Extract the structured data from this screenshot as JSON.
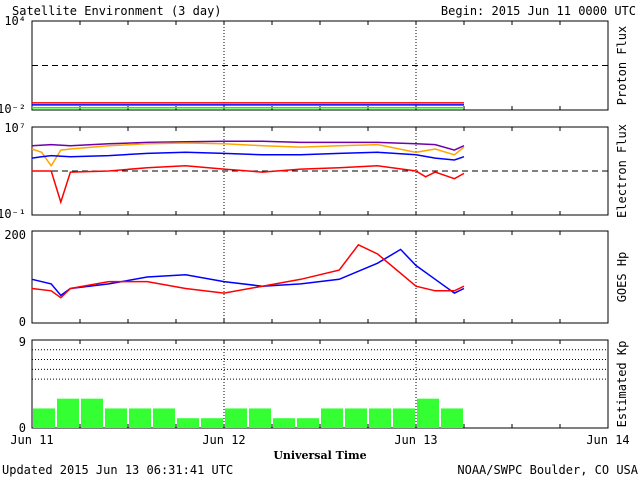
{
  "header": {
    "title": "Satellite Environment (3 day)",
    "begin": "Begin:  2015 Jun 11 0000 UTC"
  },
  "footer": {
    "updated": "Updated 2015 Jun 13 06:31:41 UTC",
    "credit": "NOAA/SWPC Boulder, CO USA"
  },
  "x_axis": {
    "title": "Universal Time",
    "ticks": [
      "Jun 11",
      "Jun 12",
      "Jun 13",
      "Jun 14"
    ]
  },
  "colors": {
    "red": "#ff0000",
    "blue": "#0000ff",
    "green": "#00ff00",
    "purple": "#7000a8",
    "orange": "#ffa500",
    "bar": "#33ff33"
  },
  "chart_data": [
    {
      "type": "line",
      "ylabel": "Proton Flux",
      "yscale": "log",
      "ytick_labels": [
        "10⁴",
        "10⁻²"
      ],
      "ylim": [
        0.01,
        10000
      ],
      "threshold": 10,
      "x_unit": "days since Jun 11 0000 UTC",
      "series": [
        {
          "color": "red",
          "x": [
            0,
            0.5,
            1.0,
            1.5,
            2.0,
            2.25
          ],
          "y": [
            0.03,
            0.03,
            0.03,
            0.03,
            0.03,
            0.03
          ]
        },
        {
          "color": "blue",
          "x": [
            0,
            0.5,
            1.0,
            1.5,
            2.0,
            2.25
          ],
          "y": [
            0.022,
            0.022,
            0.022,
            0.022,
            0.022,
            0.022
          ]
        },
        {
          "color": "green",
          "x": [
            0,
            0.5,
            1.0,
            1.5,
            2.0,
            2.25
          ],
          "y": [
            0.014,
            0.014,
            0.014,
            0.014,
            0.014,
            0.014
          ]
        }
      ]
    },
    {
      "type": "line",
      "ylabel": "Electron Flux",
      "yscale": "log",
      "ytick_labels": [
        "10⁷",
        "10⁻¹"
      ],
      "ylim": [
        0.1,
        10000000
      ],
      "threshold": 1000,
      "series": [
        {
          "color": "purple",
          "x": [
            0,
            0.1,
            0.2,
            0.4,
            0.6,
            0.8,
            1.0,
            1.2,
            1.4,
            1.6,
            1.8,
            2.0,
            2.1,
            2.2,
            2.25
          ],
          "y": [
            200000,
            250000,
            200000,
            300000,
            400000,
            450000,
            500000,
            500000,
            400000,
            400000,
            400000,
            300000,
            250000,
            80000,
            200000
          ]
        },
        {
          "color": "orange",
          "x": [
            0,
            0.05,
            0.1,
            0.15,
            0.2,
            0.4,
            0.6,
            0.8,
            1.0,
            1.2,
            1.4,
            1.6,
            1.8,
            2.0,
            2.1,
            2.2,
            2.25
          ],
          "y": [
            100000,
            50000,
            3000,
            80000,
            100000,
            200000,
            300000,
            350000,
            300000,
            200000,
            150000,
            200000,
            250000,
            50000,
            100000,
            30000,
            150000
          ]
        },
        {
          "color": "blue",
          "x": [
            0,
            0.05,
            0.1,
            0.2,
            0.4,
            0.6,
            0.8,
            1.0,
            1.2,
            1.4,
            1.6,
            1.8,
            2.0,
            2.1,
            2.2,
            2.25
          ],
          "y": [
            15000,
            20000,
            25000,
            20000,
            25000,
            40000,
            50000,
            40000,
            30000,
            30000,
            40000,
            50000,
            30000,
            15000,
            10000,
            20000
          ]
        },
        {
          "color": "red",
          "x": [
            0,
            0.1,
            0.15,
            0.2,
            0.4,
            0.6,
            0.8,
            1.0,
            1.2,
            1.4,
            1.6,
            1.8,
            2.0,
            2.05,
            2.1,
            2.2,
            2.25
          ],
          "y": [
            1000,
            1000,
            1.5,
            800,
            1000,
            2000,
            3000,
            1500,
            800,
            1500,
            2000,
            3000,
            1000,
            300,
            800,
            200,
            600
          ]
        }
      ]
    },
    {
      "type": "line",
      "ylabel": "GOES Hp",
      "ylim": [
        0,
        200
      ],
      "yticks": [
        0,
        200
      ],
      "series": [
        {
          "color": "blue",
          "x": [
            0,
            0.1,
            0.15,
            0.2,
            0.4,
            0.6,
            0.8,
            1.0,
            1.2,
            1.4,
            1.6,
            1.8,
            1.92,
            2.0,
            2.1,
            2.2,
            2.25
          ],
          "y": [
            95,
            85,
            60,
            75,
            85,
            100,
            105,
            90,
            80,
            85,
            95,
            130,
            160,
            125,
            95,
            65,
            75
          ]
        },
        {
          "color": "red",
          "x": [
            0,
            0.1,
            0.15,
            0.2,
            0.4,
            0.6,
            0.8,
            1.0,
            1.2,
            1.4,
            1.6,
            1.7,
            1.8,
            2.0,
            2.1,
            2.2,
            2.25
          ],
          "y": [
            75,
            70,
            55,
            75,
            90,
            90,
            75,
            65,
            80,
            95,
            115,
            170,
            150,
            80,
            70,
            70,
            80
          ]
        }
      ]
    },
    {
      "type": "bar",
      "ylabel": "Estimated Kp",
      "ylim": [
        0,
        9
      ],
      "yticks": [
        0,
        9
      ],
      "bar_width_hours": 3,
      "x": [
        0,
        0.125,
        0.25,
        0.375,
        0.5,
        0.625,
        0.75,
        0.875,
        1.0,
        1.125,
        1.25,
        1.375,
        1.5,
        1.625,
        1.75,
        1.875,
        2.0,
        2.125
      ],
      "values": [
        2,
        3,
        3,
        2,
        2,
        2,
        1,
        1,
        2,
        2,
        1,
        1,
        2,
        2,
        2,
        2,
        3,
        2
      ]
    }
  ]
}
